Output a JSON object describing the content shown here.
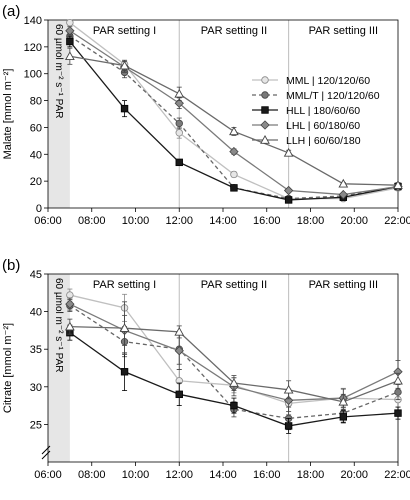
{
  "chart_data": [
    {
      "type": "line",
      "panel_label": "(a)",
      "ylabel": "Malate [mmol m⁻²]",
      "ylim": [
        0,
        140
      ],
      "yticks": [
        0,
        20,
        40,
        60,
        80,
        100,
        120,
        140
      ],
      "xlim": [
        6,
        22
      ],
      "xticks": [
        "06:00",
        "08:00",
        "10:00",
        "12:00",
        "14:00",
        "16:00",
        "18:00",
        "20:00",
        "22:00"
      ],
      "side_note": "60 µmol m⁻² s⁻¹ PAR",
      "settings": [
        "PAR setting I",
        "PAR setting II",
        "PAR setting III"
      ],
      "setting_boundaries": [
        "12:00",
        "17:00"
      ],
      "legend": "right",
      "series": [
        {
          "name": "MML | 120/120/60",
          "key": "MML",
          "x": [
            "07:00",
            "09:30",
            "12:00",
            "14:30",
            "17:00",
            "19:30",
            "22:00"
          ],
          "values": [
            138,
            107,
            56,
            25,
            7,
            7,
            15
          ],
          "err": [
            2,
            3,
            4,
            2,
            1,
            1,
            2
          ]
        },
        {
          "name": "MML/T | 120/120/60",
          "key": "MMLT",
          "x": [
            "07:00",
            "09:30",
            "12:00",
            "14:30",
            "17:00",
            "19:30",
            "22:00"
          ],
          "values": [
            128,
            101,
            63,
            15,
            7,
            9,
            16
          ],
          "err": [
            3,
            4,
            4,
            2,
            1,
            1,
            2
          ]
        },
        {
          "name": "HLL | 180/60/60",
          "key": "HLL",
          "x": [
            "07:00",
            "09:30",
            "12:00",
            "14:30",
            "17:00",
            "19:30",
            "22:00"
          ],
          "values": [
            124,
            74,
            34,
            15,
            6,
            8,
            16
          ],
          "err": [
            4,
            6,
            2,
            2,
            1,
            1,
            2
          ]
        },
        {
          "name": "LHL | 60/180/60",
          "key": "LHL",
          "x": [
            "07:00",
            "09:30",
            "12:00",
            "14:30",
            "17:00",
            "19:30",
            "22:00"
          ],
          "values": [
            132,
            105,
            78,
            42,
            13,
            10,
            16
          ],
          "err": [
            3,
            4,
            4,
            2,
            1,
            1,
            2
          ]
        },
        {
          "name": "LLH | 60/60/180",
          "key": "LLH",
          "x": [
            "07:00",
            "09:30",
            "12:00",
            "14:30",
            "17:00",
            "19:30",
            "22:00"
          ],
          "values": [
            113,
            106,
            85,
            57,
            41,
            18,
            17
          ],
          "err": [
            6,
            4,
            5,
            3,
            2,
            1,
            2
          ]
        }
      ]
    },
    {
      "type": "line",
      "panel_label": "(b)",
      "ylabel": "Citrate [mmol m⁻²]",
      "ylim": [
        20,
        45
      ],
      "yticks": [
        25,
        30,
        35,
        40,
        45
      ],
      "axis_break": true,
      "xlim": [
        6,
        22
      ],
      "xticks": [
        "06:00",
        "08:00",
        "10:00",
        "12:00",
        "14:00",
        "16:00",
        "18:00",
        "20:00",
        "22:00"
      ],
      "side_note": "60 µmol m⁻² s⁻¹ PAR",
      "settings": [
        "PAR setting I",
        "PAR setting II",
        "PAR setting III"
      ],
      "setting_boundaries": [
        "12:00",
        "17:00"
      ],
      "series": [
        {
          "name": "MML | 120/120/60",
          "key": "MML",
          "x": [
            "07:00",
            "09:30",
            "12:00",
            "14:30",
            "17:00",
            "19:30",
            "22:00"
          ],
          "values": [
            42.2,
            40.5,
            30.8,
            30.2,
            27.8,
            28.5,
            28.3
          ],
          "err": [
            0.8,
            1.8,
            1.5,
            1.0,
            1.5,
            1.3,
            1.0
          ]
        },
        {
          "name": "MML/T | 120/120/60",
          "key": "MMLT",
          "x": [
            "07:00",
            "09:30",
            "12:00",
            "14:30",
            "17:00",
            "19:30",
            "22:00"
          ],
          "values": [
            40.8,
            36.0,
            35.0,
            27.0,
            25.8,
            26.5,
            29.3
          ],
          "err": [
            0.8,
            2.0,
            2.0,
            1.0,
            1.5,
            1.2,
            1.0
          ]
        },
        {
          "name": "HLL | 180/60/60",
          "key": "HLL",
          "x": [
            "07:00",
            "09:30",
            "12:00",
            "14:30",
            "17:00",
            "19:30",
            "22:00"
          ],
          "values": [
            37.2,
            32.0,
            29.0,
            27.5,
            24.8,
            26.0,
            26.5
          ],
          "err": [
            1.0,
            2.5,
            1.5,
            1.0,
            1.0,
            0.8,
            0.8
          ]
        },
        {
          "name": "LHL | 60/180/60",
          "key": "LHL",
          "x": [
            "07:00",
            "09:30",
            "12:00",
            "14:30",
            "17:00",
            "19:30",
            "22:00"
          ],
          "values": [
            41.0,
            37.5,
            34.8,
            30.0,
            28.2,
            28.5,
            32.0
          ],
          "err": [
            0.8,
            2.0,
            2.5,
            1.2,
            1.5,
            1.2,
            1.5
          ]
        },
        {
          "name": "LLH | 60/60/180",
          "key": "LLH",
          "x": [
            "07:00",
            "09:30",
            "12:00",
            "14:30",
            "17:00",
            "19:30",
            "22:00"
          ],
          "values": [
            38.0,
            37.8,
            37.3,
            30.5,
            29.6,
            28.0,
            30.8
          ],
          "err": [
            1.0,
            3.5,
            0.8,
            1.0,
            1.2,
            1.0,
            1.0
          ]
        }
      ]
    }
  ],
  "style": {
    "series_styles": {
      "MML": {
        "color": "#c0c0c0",
        "dash": "none",
        "marker": "circle",
        "fill": "#e6e6e6",
        "stroke": "#888888"
      },
      "MMLT": {
        "color": "#666666",
        "dash": "4,3",
        "marker": "circle",
        "fill": "#7a7a7a",
        "stroke": "#444444"
      },
      "HLL": {
        "color": "#1a1a1a",
        "dash": "none",
        "marker": "square",
        "fill": "#1a1a1a",
        "stroke": "#000000"
      },
      "LHL": {
        "color": "#7a7a7a",
        "dash": "none",
        "marker": "diamond",
        "fill": "#8a8a8a",
        "stroke": "#444444"
      },
      "LLH": {
        "color": "#6a6a6a",
        "dash": "none",
        "marker": "triangle",
        "fill": "#ffffff",
        "stroke": "#444444"
      }
    },
    "shade_color": "#e6e6e6",
    "grid": false
  }
}
